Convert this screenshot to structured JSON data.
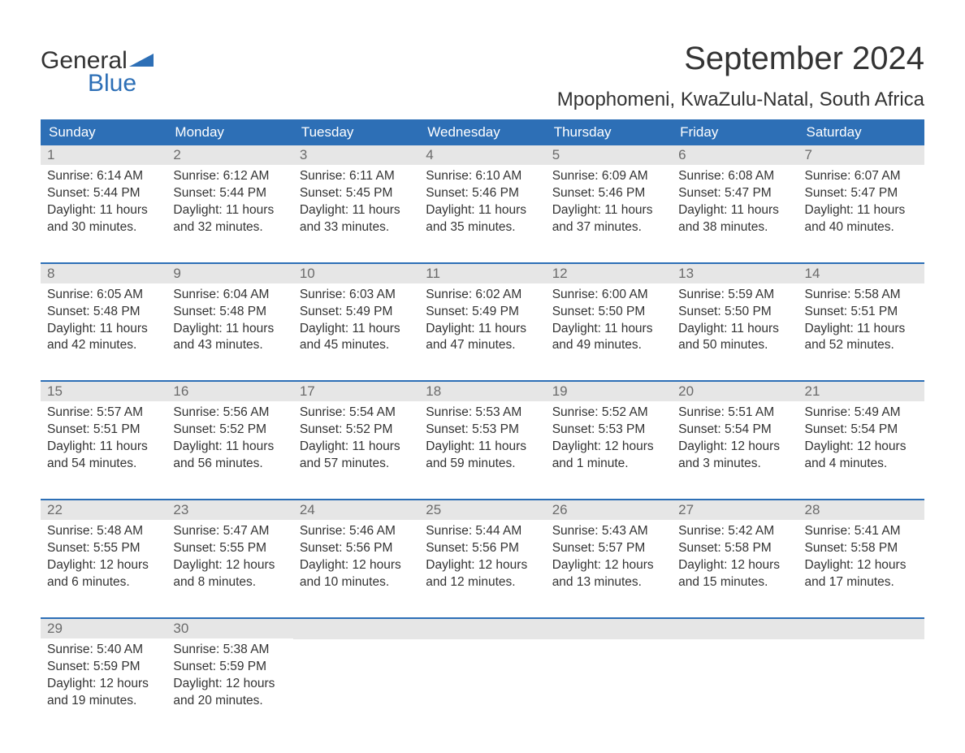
{
  "brand": {
    "logo_text1": "General",
    "logo_text2": "Blue",
    "logo_color_gray": "#555555",
    "logo_color_blue": "#2d6fb6"
  },
  "header": {
    "month_title": "September 2024",
    "location": "Mpophomeni, KwaZulu-Natal, South Africa"
  },
  "colors": {
    "header_bg": "#2d6fb6",
    "header_text": "#ffffff",
    "daynum_bg": "#e6e6e6",
    "daynum_text": "#6b6b6b",
    "body_text": "#333333",
    "week_border": "#2d6fb6",
    "page_bg": "#ffffff"
  },
  "weekdays": [
    "Sunday",
    "Monday",
    "Tuesday",
    "Wednesday",
    "Thursday",
    "Friday",
    "Saturday"
  ],
  "weeks": [
    [
      {
        "num": "1",
        "sunrise": "Sunrise: 6:14 AM",
        "sunset": "Sunset: 5:44 PM",
        "daylight": "Daylight: 11 hours and 30 minutes."
      },
      {
        "num": "2",
        "sunrise": "Sunrise: 6:12 AM",
        "sunset": "Sunset: 5:44 PM",
        "daylight": "Daylight: 11 hours and 32 minutes."
      },
      {
        "num": "3",
        "sunrise": "Sunrise: 6:11 AM",
        "sunset": "Sunset: 5:45 PM",
        "daylight": "Daylight: 11 hours and 33 minutes."
      },
      {
        "num": "4",
        "sunrise": "Sunrise: 6:10 AM",
        "sunset": "Sunset: 5:46 PM",
        "daylight": "Daylight: 11 hours and 35 minutes."
      },
      {
        "num": "5",
        "sunrise": "Sunrise: 6:09 AM",
        "sunset": "Sunset: 5:46 PM",
        "daylight": "Daylight: 11 hours and 37 minutes."
      },
      {
        "num": "6",
        "sunrise": "Sunrise: 6:08 AM",
        "sunset": "Sunset: 5:47 PM",
        "daylight": "Daylight: 11 hours and 38 minutes."
      },
      {
        "num": "7",
        "sunrise": "Sunrise: 6:07 AM",
        "sunset": "Sunset: 5:47 PM",
        "daylight": "Daylight: 11 hours and 40 minutes."
      }
    ],
    [
      {
        "num": "8",
        "sunrise": "Sunrise: 6:05 AM",
        "sunset": "Sunset: 5:48 PM",
        "daylight": "Daylight: 11 hours and 42 minutes."
      },
      {
        "num": "9",
        "sunrise": "Sunrise: 6:04 AM",
        "sunset": "Sunset: 5:48 PM",
        "daylight": "Daylight: 11 hours and 43 minutes."
      },
      {
        "num": "10",
        "sunrise": "Sunrise: 6:03 AM",
        "sunset": "Sunset: 5:49 PM",
        "daylight": "Daylight: 11 hours and 45 minutes."
      },
      {
        "num": "11",
        "sunrise": "Sunrise: 6:02 AM",
        "sunset": "Sunset: 5:49 PM",
        "daylight": "Daylight: 11 hours and 47 minutes."
      },
      {
        "num": "12",
        "sunrise": "Sunrise: 6:00 AM",
        "sunset": "Sunset: 5:50 PM",
        "daylight": "Daylight: 11 hours and 49 minutes."
      },
      {
        "num": "13",
        "sunrise": "Sunrise: 5:59 AM",
        "sunset": "Sunset: 5:50 PM",
        "daylight": "Daylight: 11 hours and 50 minutes."
      },
      {
        "num": "14",
        "sunrise": "Sunrise: 5:58 AM",
        "sunset": "Sunset: 5:51 PM",
        "daylight": "Daylight: 11 hours and 52 minutes."
      }
    ],
    [
      {
        "num": "15",
        "sunrise": "Sunrise: 5:57 AM",
        "sunset": "Sunset: 5:51 PM",
        "daylight": "Daylight: 11 hours and 54 minutes."
      },
      {
        "num": "16",
        "sunrise": "Sunrise: 5:56 AM",
        "sunset": "Sunset: 5:52 PM",
        "daylight": "Daylight: 11 hours and 56 minutes."
      },
      {
        "num": "17",
        "sunrise": "Sunrise: 5:54 AM",
        "sunset": "Sunset: 5:52 PM",
        "daylight": "Daylight: 11 hours and 57 minutes."
      },
      {
        "num": "18",
        "sunrise": "Sunrise: 5:53 AM",
        "sunset": "Sunset: 5:53 PM",
        "daylight": "Daylight: 11 hours and 59 minutes."
      },
      {
        "num": "19",
        "sunrise": "Sunrise: 5:52 AM",
        "sunset": "Sunset: 5:53 PM",
        "daylight": "Daylight: 12 hours and 1 minute."
      },
      {
        "num": "20",
        "sunrise": "Sunrise: 5:51 AM",
        "sunset": "Sunset: 5:54 PM",
        "daylight": "Daylight: 12 hours and 3 minutes."
      },
      {
        "num": "21",
        "sunrise": "Sunrise: 5:49 AM",
        "sunset": "Sunset: 5:54 PM",
        "daylight": "Daylight: 12 hours and 4 minutes."
      }
    ],
    [
      {
        "num": "22",
        "sunrise": "Sunrise: 5:48 AM",
        "sunset": "Sunset: 5:55 PM",
        "daylight": "Daylight: 12 hours and 6 minutes."
      },
      {
        "num": "23",
        "sunrise": "Sunrise: 5:47 AM",
        "sunset": "Sunset: 5:55 PM",
        "daylight": "Daylight: 12 hours and 8 minutes."
      },
      {
        "num": "24",
        "sunrise": "Sunrise: 5:46 AM",
        "sunset": "Sunset: 5:56 PM",
        "daylight": "Daylight: 12 hours and 10 minutes."
      },
      {
        "num": "25",
        "sunrise": "Sunrise: 5:44 AM",
        "sunset": "Sunset: 5:56 PM",
        "daylight": "Daylight: 12 hours and 12 minutes."
      },
      {
        "num": "26",
        "sunrise": "Sunrise: 5:43 AM",
        "sunset": "Sunset: 5:57 PM",
        "daylight": "Daylight: 12 hours and 13 minutes."
      },
      {
        "num": "27",
        "sunrise": "Sunrise: 5:42 AM",
        "sunset": "Sunset: 5:58 PM",
        "daylight": "Daylight: 12 hours and 15 minutes."
      },
      {
        "num": "28",
        "sunrise": "Sunrise: 5:41 AM",
        "sunset": "Sunset: 5:58 PM",
        "daylight": "Daylight: 12 hours and 17 minutes."
      }
    ],
    [
      {
        "num": "29",
        "sunrise": "Sunrise: 5:40 AM",
        "sunset": "Sunset: 5:59 PM",
        "daylight": "Daylight: 12 hours and 19 minutes."
      },
      {
        "num": "30",
        "sunrise": "Sunrise: 5:38 AM",
        "sunset": "Sunset: 5:59 PM",
        "daylight": "Daylight: 12 hours and 20 minutes."
      },
      {
        "empty": true
      },
      {
        "empty": true
      },
      {
        "empty": true
      },
      {
        "empty": true
      },
      {
        "empty": true
      }
    ]
  ]
}
